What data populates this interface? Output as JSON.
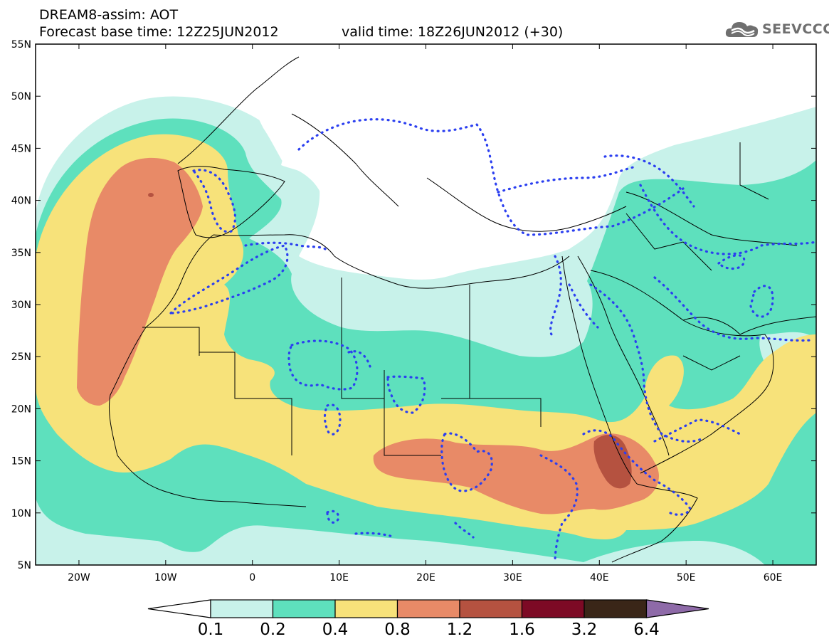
{
  "header": {
    "line1": "DREAM8-assim: AOT",
    "base_time": "Forecast base time: 12Z25JUN2012",
    "valid_time": "valid time: 18Z26JUN2012 (+30)"
  },
  "logo": {
    "text": "SEEVCCC",
    "icon": "cloud-icon"
  },
  "map": {
    "lon_range": [
      -25,
      65
    ],
    "lat_range": [
      5,
      55
    ],
    "x_ticks": [
      "20W",
      "10W",
      "0",
      "10E",
      "20E",
      "30E",
      "40E",
      "50E",
      "60E"
    ],
    "y_ticks": [
      "55N",
      "50N",
      "45N",
      "40N",
      "35N",
      "30N",
      "25N",
      "20N",
      "15N",
      "10N",
      "5N"
    ]
  },
  "colorbar": {
    "levels": [
      "0.1",
      "0.2",
      "0.4",
      "0.8",
      "1.2",
      "1.6",
      "3.2",
      "6.4"
    ],
    "colors": [
      "#ffffff",
      "#c8f2ea",
      "#5ee0bd",
      "#f7e27a",
      "#e88a67",
      "#b55240",
      "#7d0a25",
      "#3a2618",
      "#8e6aa8"
    ]
  }
}
